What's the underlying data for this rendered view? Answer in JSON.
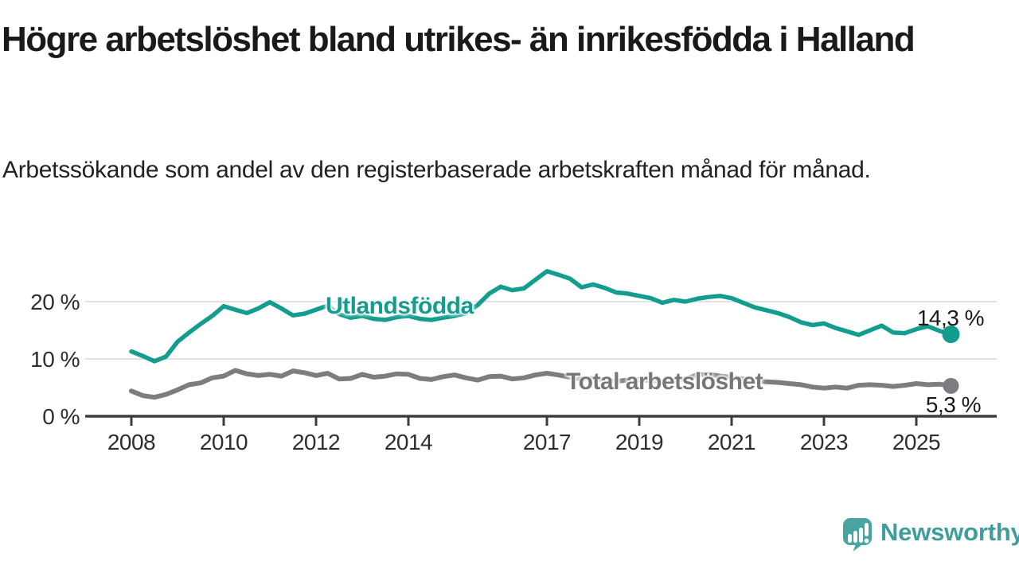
{
  "header": {
    "title": "Högre arbetslöshet bland utrikes- än inrikesfödda i Halland",
    "subtitle": "Arbetssökande som andel av den registerbaserade arbetskraften månad för månad."
  },
  "chart_data": {
    "type": "line",
    "title": "Högre arbetslöshet bland utrikes- än inrikesfödda i Halland",
    "subtitle": "Arbetssökande som andel av den registerbaserade arbetskraften månad för månad.",
    "xlabel": "",
    "ylabel": "",
    "unit": "%",
    "grid": "horizontal",
    "legend_position": "inline-on-lines",
    "x_axis": {
      "ticks": [
        2008,
        2010,
        2012,
        2014,
        2017,
        2019,
        2021,
        2023,
        2025
      ],
      "range": [
        2007.0,
        2026.5
      ]
    },
    "y_axis": {
      "ticks": [
        0,
        10,
        20
      ],
      "tick_suffix": " %",
      "range": [
        0,
        27
      ]
    },
    "series": [
      {
        "name": "Utlandsfödda",
        "color": "#129d8e",
        "end_label": "14,3 %",
        "end_value": 14.3,
        "points": [
          [
            2008.0,
            11.3
          ],
          [
            2008.25,
            10.5
          ],
          [
            2008.5,
            9.6
          ],
          [
            2008.75,
            10.4
          ],
          [
            2009.0,
            13.0
          ],
          [
            2009.25,
            14.6
          ],
          [
            2009.5,
            16.1
          ],
          [
            2009.75,
            17.5
          ],
          [
            2010.0,
            19.2
          ],
          [
            2010.25,
            18.6
          ],
          [
            2010.5,
            18.0
          ],
          [
            2010.75,
            18.8
          ],
          [
            2011.0,
            19.9
          ],
          [
            2011.25,
            18.8
          ],
          [
            2011.5,
            17.6
          ],
          [
            2011.75,
            17.9
          ],
          [
            2012.0,
            18.6
          ],
          [
            2012.25,
            19.3
          ],
          [
            2012.5,
            17.8
          ],
          [
            2012.75,
            17.2
          ],
          [
            2013.0,
            17.5
          ],
          [
            2013.25,
            17.0
          ],
          [
            2013.5,
            16.8
          ],
          [
            2013.75,
            17.3
          ],
          [
            2014.0,
            17.5
          ],
          [
            2014.25,
            17.0
          ],
          [
            2014.5,
            16.8
          ],
          [
            2014.75,
            17.2
          ],
          [
            2015.0,
            17.5
          ],
          [
            2015.25,
            18.0
          ],
          [
            2015.5,
            19.4
          ],
          [
            2015.75,
            21.4
          ],
          [
            2016.0,
            22.6
          ],
          [
            2016.25,
            22.0
          ],
          [
            2016.5,
            22.3
          ],
          [
            2016.75,
            23.8
          ],
          [
            2017.0,
            25.3
          ],
          [
            2017.25,
            24.7
          ],
          [
            2017.5,
            24.0
          ],
          [
            2017.75,
            22.5
          ],
          [
            2018.0,
            23.0
          ],
          [
            2018.25,
            22.4
          ],
          [
            2018.5,
            21.6
          ],
          [
            2018.75,
            21.4
          ],
          [
            2019.0,
            21.0
          ],
          [
            2019.25,
            20.6
          ],
          [
            2019.5,
            19.8
          ],
          [
            2019.75,
            20.3
          ],
          [
            2020.0,
            20.0
          ],
          [
            2020.25,
            20.5
          ],
          [
            2020.5,
            20.8
          ],
          [
            2020.75,
            21.0
          ],
          [
            2021.0,
            20.6
          ],
          [
            2021.25,
            19.8
          ],
          [
            2021.5,
            19.0
          ],
          [
            2021.75,
            18.5
          ],
          [
            2022.0,
            18.0
          ],
          [
            2022.25,
            17.3
          ],
          [
            2022.5,
            16.4
          ],
          [
            2022.75,
            15.9
          ],
          [
            2023.0,
            16.2
          ],
          [
            2023.25,
            15.4
          ],
          [
            2023.5,
            14.8
          ],
          [
            2023.75,
            14.2
          ],
          [
            2024.0,
            15.0
          ],
          [
            2024.25,
            15.8
          ],
          [
            2024.5,
            14.6
          ],
          [
            2024.75,
            14.5
          ],
          [
            2025.0,
            15.2
          ],
          [
            2025.25,
            15.7
          ],
          [
            2025.5,
            14.9
          ],
          [
            2025.75,
            14.3
          ]
        ]
      },
      {
        "name": "Total arbetslöshet",
        "color": "#7c7d80",
        "end_label": "5,3 %",
        "end_value": 5.3,
        "points": [
          [
            2008.0,
            4.4
          ],
          [
            2008.25,
            3.6
          ],
          [
            2008.5,
            3.3
          ],
          [
            2008.75,
            3.8
          ],
          [
            2009.0,
            4.6
          ],
          [
            2009.25,
            5.5
          ],
          [
            2009.5,
            5.8
          ],
          [
            2009.75,
            6.7
          ],
          [
            2010.0,
            7.0
          ],
          [
            2010.25,
            8.0
          ],
          [
            2010.5,
            7.4
          ],
          [
            2010.75,
            7.1
          ],
          [
            2011.0,
            7.3
          ],
          [
            2011.25,
            7.0
          ],
          [
            2011.5,
            7.9
          ],
          [
            2011.75,
            7.6
          ],
          [
            2012.0,
            7.1
          ],
          [
            2012.25,
            7.5
          ],
          [
            2012.5,
            6.5
          ],
          [
            2012.75,
            6.6
          ],
          [
            2013.0,
            7.3
          ],
          [
            2013.25,
            6.8
          ],
          [
            2013.5,
            7.0
          ],
          [
            2013.75,
            7.4
          ],
          [
            2014.0,
            7.3
          ],
          [
            2014.25,
            6.6
          ],
          [
            2014.5,
            6.4
          ],
          [
            2014.75,
            6.9
          ],
          [
            2015.0,
            7.2
          ],
          [
            2015.25,
            6.7
          ],
          [
            2015.5,
            6.3
          ],
          [
            2015.75,
            6.9
          ],
          [
            2016.0,
            7.0
          ],
          [
            2016.25,
            6.5
          ],
          [
            2016.5,
            6.7
          ],
          [
            2016.75,
            7.2
          ],
          [
            2017.0,
            7.5
          ],
          [
            2017.25,
            7.2
          ],
          [
            2017.5,
            6.8
          ],
          [
            2017.75,
            6.5
          ],
          [
            2018.0,
            6.6
          ],
          [
            2018.25,
            6.3
          ],
          [
            2018.5,
            6.1
          ],
          [
            2018.75,
            6.3
          ],
          [
            2019.0,
            6.4
          ],
          [
            2019.25,
            6.2
          ],
          [
            2019.5,
            6.1
          ],
          [
            2019.75,
            6.3
          ],
          [
            2020.0,
            6.5
          ],
          [
            2020.25,
            7.2
          ],
          [
            2020.5,
            7.3
          ],
          [
            2020.75,
            7.0
          ],
          [
            2021.0,
            6.8
          ],
          [
            2021.25,
            6.5
          ],
          [
            2021.5,
            6.2
          ],
          [
            2021.75,
            6.0
          ],
          [
            2022.0,
            5.9
          ],
          [
            2022.25,
            5.7
          ],
          [
            2022.5,
            5.5
          ],
          [
            2022.75,
            5.1
          ],
          [
            2023.0,
            4.9
          ],
          [
            2023.25,
            5.1
          ],
          [
            2023.5,
            4.9
          ],
          [
            2023.75,
            5.4
          ],
          [
            2024.0,
            5.5
          ],
          [
            2024.25,
            5.4
          ],
          [
            2024.5,
            5.2
          ],
          [
            2024.75,
            5.4
          ],
          [
            2025.0,
            5.7
          ],
          [
            2025.25,
            5.5
          ],
          [
            2025.5,
            5.6
          ],
          [
            2025.75,
            5.3
          ]
        ]
      }
    ]
  },
  "branding": {
    "logo_text": "Newsworthy",
    "logo_color": "#3f9e9c",
    "logo_icon_color": "#47a4a1"
  },
  "colors": {
    "accent_teal": "#129d8e",
    "line_gray": "#7c7d80",
    "gridline": "#d9d9d9",
    "axis": "#3d3d3d",
    "text": "#1a1a1a"
  }
}
